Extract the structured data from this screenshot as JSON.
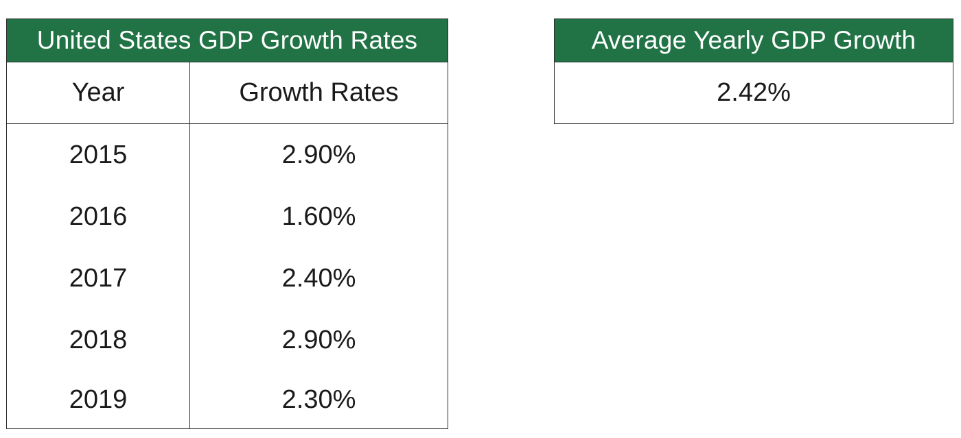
{
  "gdp_table": {
    "title": "United States GDP Growth Rates",
    "header": {
      "year": "Year",
      "rate": "Growth Rates"
    },
    "rows": [
      {
        "year": "2015",
        "rate": "2.90%"
      },
      {
        "year": "2016",
        "rate": "1.60%"
      },
      {
        "year": "2017",
        "rate": "2.40%"
      },
      {
        "year": "2018",
        "rate": "2.90%"
      },
      {
        "year": "2019",
        "rate": "2.30%"
      }
    ]
  },
  "average": {
    "title": "Average Yearly GDP Growth",
    "value": "2.42%"
  },
  "colors": {
    "header_green": "#217346",
    "header_text": "#ffffff",
    "border": "#2b2b2b"
  }
}
